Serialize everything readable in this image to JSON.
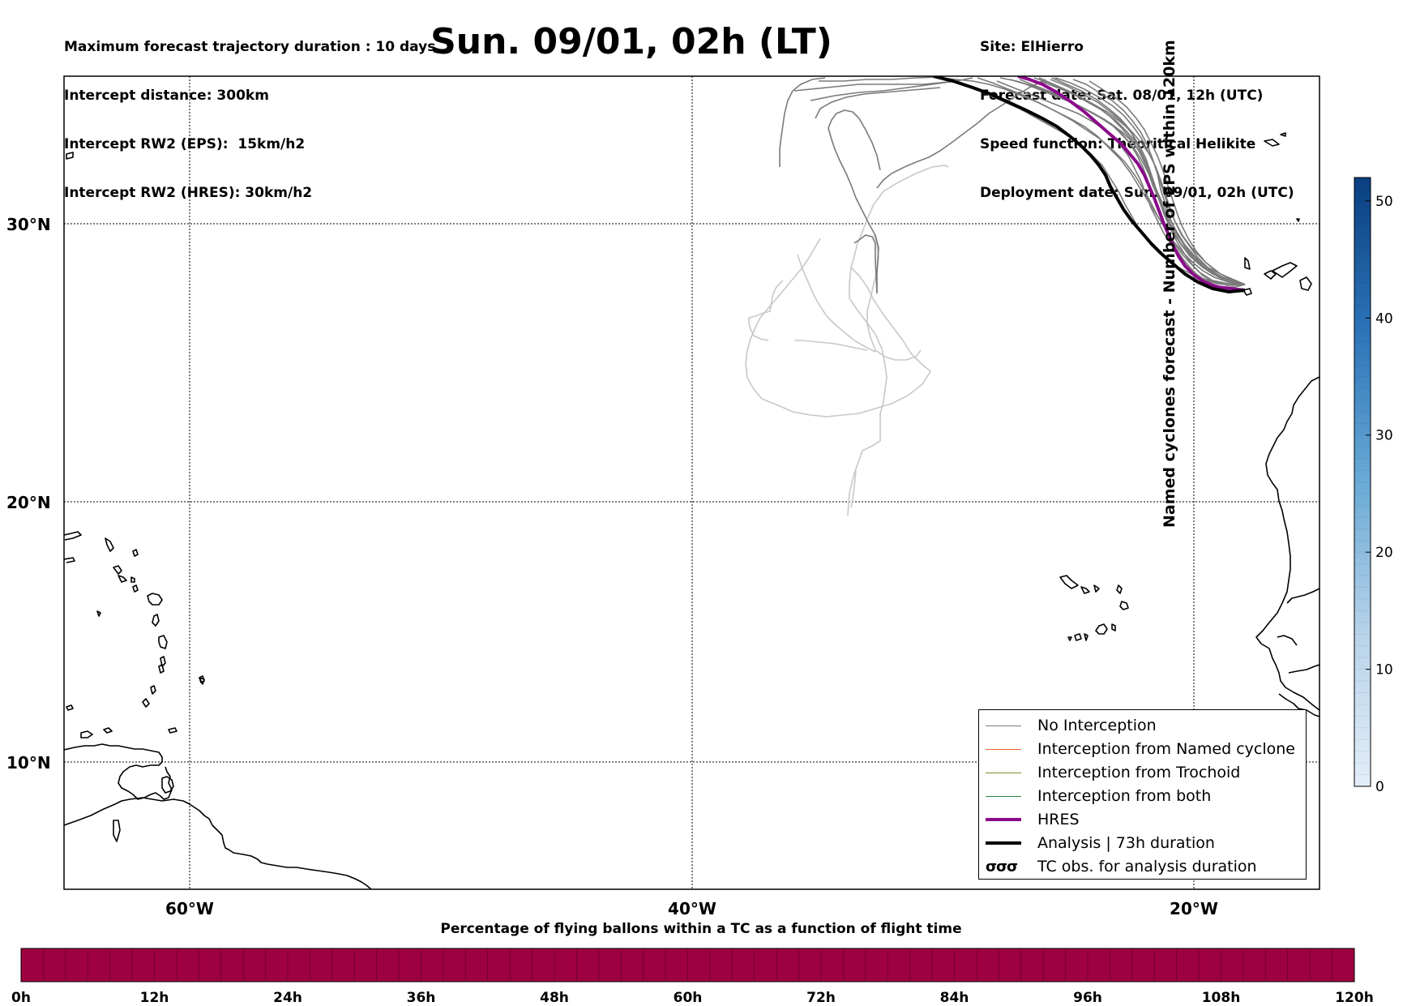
{
  "header": {
    "left_lines": [
      "Maximum forecast trajectory duration : 10 days",
      "Intercept distance: 300km",
      "Intercept RW2 (EPS):  15km/h2",
      "Intercept RW2 (HRES): 30km/h2"
    ],
    "title": "Sun. 09/01, 02h (LT)",
    "right_lines": [
      "Site: ElHierro",
      "Forecast date: Sat. 08/01, 12h (UTC)",
      "Speed function: Theoritical Helikite",
      "Deployment date: Sun. 09/01, 02h (UTC)"
    ]
  },
  "map": {
    "lon_range": [
      -65,
      15
    ],
    "lat_range": [
      5,
      35
    ],
    "lat_ticks": [
      {
        "lat": 30,
        "label": "30°N"
      },
      {
        "lat": 20,
        "label": "20°N"
      },
      {
        "lat": 10,
        "label": "10°N"
      }
    ],
    "lon_ticks": [
      {
        "lon": -60,
        "label": "60°W"
      },
      {
        "lon": -40,
        "label": "40°W"
      },
      {
        "lon": -20,
        "label": "20°W"
      }
    ],
    "colors": {
      "no_interception": "#7a7a7a",
      "faded_track": "#c8c8c8",
      "named_cyclone": "#e8622a",
      "trochoid": "#8a8a2a",
      "both": "#2a8a3a",
      "hres": "#8b0a8b",
      "analysis": "#000000"
    }
  },
  "legend": {
    "items": [
      {
        "label": "No Interception",
        "style": "no_interception"
      },
      {
        "label": "Interception from Named cyclone",
        "style": "named_cyclone"
      },
      {
        "label": "Interception from Trochoid",
        "style": "trochoid"
      },
      {
        "label": "Interception from both",
        "style": "both"
      },
      {
        "label": "HRES",
        "style": "hres"
      },
      {
        "label": "Analysis | 73h duration",
        "style": "analysis"
      },
      {
        "label": "TC obs. for analysis duration",
        "style": "tc_obs",
        "symbol": "σσσ"
      }
    ]
  },
  "colorbar_right": {
    "label": "Named cyclones forecast - Number of EPS within 120km",
    "min": 0,
    "max": 52,
    "ticks": [
      "0",
      "10",
      "20",
      "30",
      "40",
      "50"
    ],
    "color_low": "#e3eef9",
    "color_high": "#0a3f80"
  },
  "colorbar_bottom": {
    "title": "Percentage of flying ballons within a TC as a function of flight time",
    "fill_color": "#9e0040",
    "ticks": [
      "0h",
      "12h",
      "24h",
      "36h",
      "48h",
      "60h",
      "72h",
      "84h",
      "96h",
      "108h",
      "120h"
    ]
  }
}
